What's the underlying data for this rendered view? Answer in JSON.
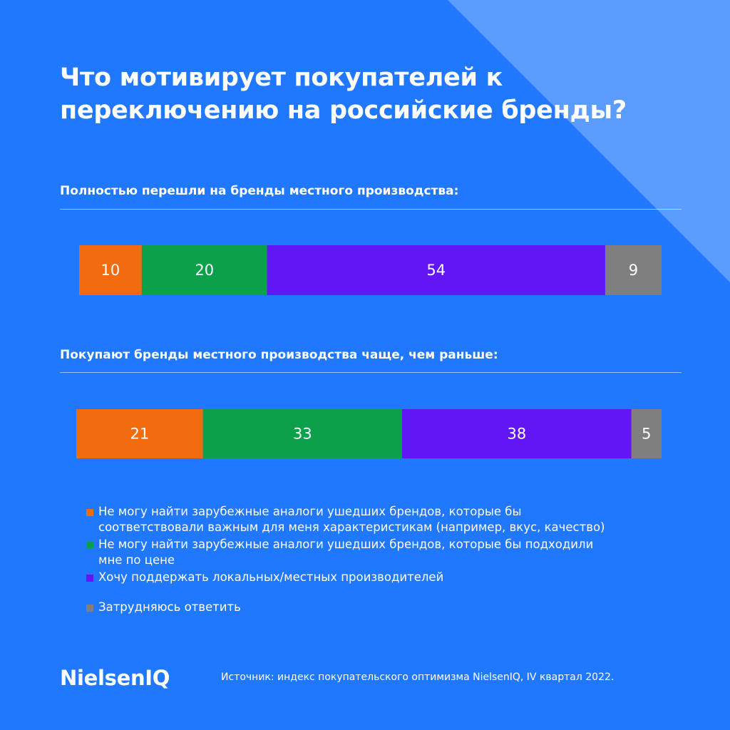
{
  "title_lines": [
    "Что мотивирует покупателей к",
    "переключению на российские бренды?"
  ],
  "colors": {
    "background": "#1f78ff",
    "corner_accent": "#5b9cff",
    "text": "#ffffff"
  },
  "chart_data": [
    {
      "type": "bar",
      "orientation": "horizontal-stacked-100",
      "subtitle": "Полностью перешли на бренды местного производства:",
      "series": [
        {
          "name": "Не могу найти зарубежные аналоги ушедших брендов, которые бы соответствовали важным для меня характеристикам (например, вкус, качество)",
          "value": 10,
          "color": "#f26b0f"
        },
        {
          "name": "Не могу найти зарубежные аналоги ушедших брендов, которые бы подходили мне по цене",
          "value": 20,
          "color": "#0aa14a"
        },
        {
          "name": "Хочу поддержать локальных/местных производителей",
          "value": 54,
          "color": "#6316f5"
        },
        {
          "name": "Затрудняюсь ответить",
          "value": 9,
          "color": "#7f7f7f"
        }
      ]
    },
    {
      "type": "bar",
      "orientation": "horizontal-stacked-100",
      "subtitle": "Покупают бренды местного производства чаще, чем раньше:",
      "series": [
        {
          "name": "Не могу найти зарубежные аналоги ушедших брендов, которые бы соответствовали важным для меня характеристикам (например, вкус, качество)",
          "value": 21,
          "color": "#f26b0f"
        },
        {
          "name": "Не могу найти зарубежные аналоги ушедших брендов, которые бы подходили мне по цене",
          "value": 33,
          "color": "#0aa14a"
        },
        {
          "name": "Хочу поддержать локальных/местных производителей",
          "value": 38,
          "color": "#6316f5"
        },
        {
          "name": "Затрудняюсь ответить",
          "value": 5,
          "color": "#7f7f7f"
        }
      ]
    }
  ],
  "legend": [
    {
      "lines": [
        "Не могу найти зарубежные аналоги ушедших брендов, которые бы",
        "соответствовали важным для меня характеристикам (например, вкус, качество)"
      ],
      "color": "#f26b0f"
    },
    {
      "lines": [
        "Не могу найти зарубежные аналоги ушедших брендов, которые бы подходили",
        "мне по цене"
      ],
      "color": "#0aa14a"
    },
    {
      "lines": [
        "Хочу поддержать локальных/местных производителей"
      ],
      "color": "#6316f5"
    },
    {
      "lines": [
        "Затрудняюсь ответить"
      ],
      "color": "#7f7f7f"
    }
  ],
  "logo": "NielsenIQ",
  "source": "Источник: индекс покупательского оптимизма NielsenIQ, IV квартал 2022."
}
